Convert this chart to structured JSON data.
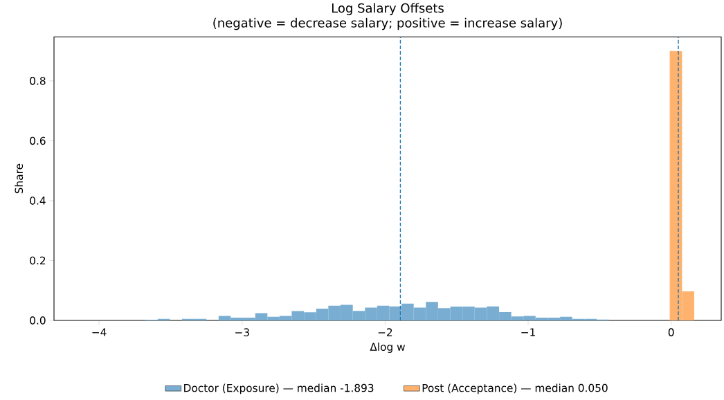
{
  "chart_data": {
    "type": "histogram",
    "title": "Log Salary Offsets",
    "subtitle": "(negative = decrease salary; positive = increase salary)",
    "xlabel": "Δlog w",
    "ylabel": "Share",
    "bins": [
      -4.102,
      -4.017,
      -3.931,
      -3.846,
      -3.761,
      -3.676,
      -3.59,
      -3.505,
      -3.42,
      -3.335,
      -3.249,
      -3.164,
      -3.079,
      -2.994,
      -2.908,
      -2.823,
      -2.738,
      -2.653,
      -2.567,
      -2.482,
      -2.397,
      -2.312,
      -2.226,
      -2.141,
      -2.056,
      -1.971,
      -1.885,
      -1.8,
      -1.715,
      -1.63,
      -1.544,
      -1.459,
      -1.374,
      -1.289,
      -1.203,
      -1.118,
      -1.033,
      -0.948,
      -0.862,
      -0.777,
      -0.692,
      -0.607,
      -0.521,
      -0.436,
      -0.351,
      -0.266,
      -0.18,
      -0.095,
      -0.01,
      0.076,
      0.161
    ],
    "series": [
      {
        "name": "Doctor (Exposure) — median -1.893",
        "color": "#79aed2",
        "values": [
          0,
          0,
          0,
          0,
          0,
          0.002,
          0.005,
          0,
          0.005,
          0.005,
          0,
          0.015,
          0.009,
          0.009,
          0.024,
          0.012,
          0.015,
          0.031,
          0.027,
          0.039,
          0.049,
          0.052,
          0.032,
          0.043,
          0.049,
          0.047,
          0.056,
          0.043,
          0.062,
          0.041,
          0.046,
          0.046,
          0.043,
          0.047,
          0.028,
          0.013,
          0.015,
          0.009,
          0.009,
          0.012,
          0.005,
          0.005,
          0.003,
          0,
          0,
          0,
          0,
          0,
          0,
          0
        ]
      },
      {
        "name": "Post (Acceptance) — median 0.050",
        "color": "#ffb26e",
        "values": [
          0,
          0,
          0,
          0,
          0,
          0,
          0,
          0,
          0,
          0,
          0,
          0,
          0,
          0,
          0,
          0,
          0,
          0,
          0,
          0,
          0,
          0,
          0,
          0,
          0,
          0,
          0,
          0,
          0,
          0,
          0,
          0,
          0,
          0,
          0,
          0,
          0,
          0,
          0,
          0,
          0,
          0,
          0,
          0,
          0,
          0,
          0,
          0,
          0.9,
          0.097
        ]
      }
    ],
    "ref_lines": [
      {
        "axis": "x",
        "value": -1.893,
        "color": "#1f77b4",
        "line_style": "dashed"
      },
      {
        "axis": "x",
        "value": 0.05,
        "color": "#1f77b4",
        "line_style": "dashed"
      }
    ],
    "xlim": [
      -4.315,
      0.35
    ],
    "ylim": [
      0,
      0.947
    ],
    "xticks": [
      {
        "value": -4,
        "label": "−4"
      },
      {
        "value": -3,
        "label": "−3"
      },
      {
        "value": -2,
        "label": "−2"
      },
      {
        "value": -1,
        "label": "−1"
      },
      {
        "value": 0,
        "label": "0"
      }
    ],
    "yticks": [
      {
        "value": 0,
        "label": "0.0"
      },
      {
        "value": 0.2,
        "label": "0.2"
      },
      {
        "value": 0.4,
        "label": "0.4"
      },
      {
        "value": 0.6,
        "label": "0.6"
      },
      {
        "value": 0.8,
        "label": "0.8"
      }
    ],
    "legend": "bottom"
  }
}
